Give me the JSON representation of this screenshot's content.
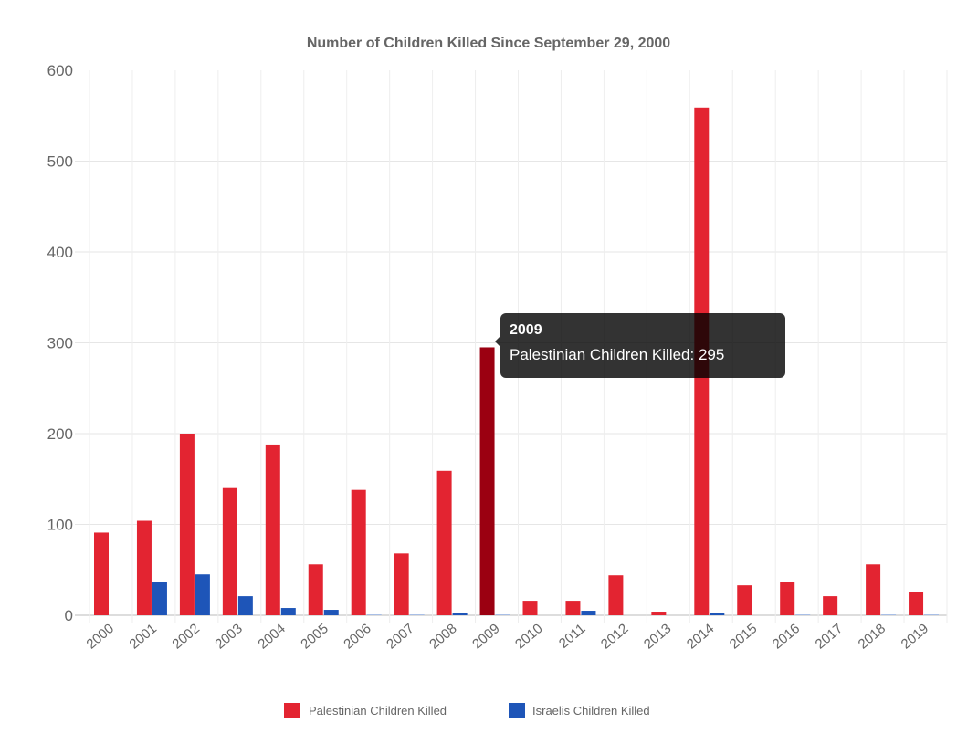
{
  "chart_data": {
    "type": "bar",
    "title": "Number of Children Killed Since September 29, 2000",
    "xlabel": "",
    "ylabel": "",
    "categories": [
      "2000",
      "2001",
      "2002",
      "2003",
      "2004",
      "2005",
      "2006",
      "2007",
      "2008",
      "2009",
      "2010",
      "2011",
      "2012",
      "2013",
      "2014",
      "2015",
      "2016",
      "2017",
      "2018",
      "2019"
    ],
    "series": [
      {
        "name": "Palestinian Children Killed",
        "color": "#e32431",
        "values": [
          91,
          104,
          200,
          140,
          188,
          56,
          138,
          68,
          159,
          295,
          16,
          16,
          44,
          4,
          559,
          33,
          37,
          21,
          56,
          26
        ]
      },
      {
        "name": "Israelis Children Killed",
        "color": "#1e55b8",
        "values": [
          0,
          37,
          45,
          21,
          8,
          6,
          1,
          1,
          3,
          1,
          0,
          5,
          0,
          0,
          3,
          0,
          1,
          0,
          1,
          1
        ]
      }
    ],
    "ylim": [
      0,
      600
    ],
    "yticks": [
      0,
      100,
      200,
      300,
      400,
      500,
      600
    ],
    "grid": true,
    "legend": "bottom",
    "highlight": {
      "category_index": 9,
      "series_index": 0,
      "color": "#9b0011"
    }
  },
  "tooltip": {
    "title": "2009",
    "body": "Palestinian Children Killed: 295"
  }
}
